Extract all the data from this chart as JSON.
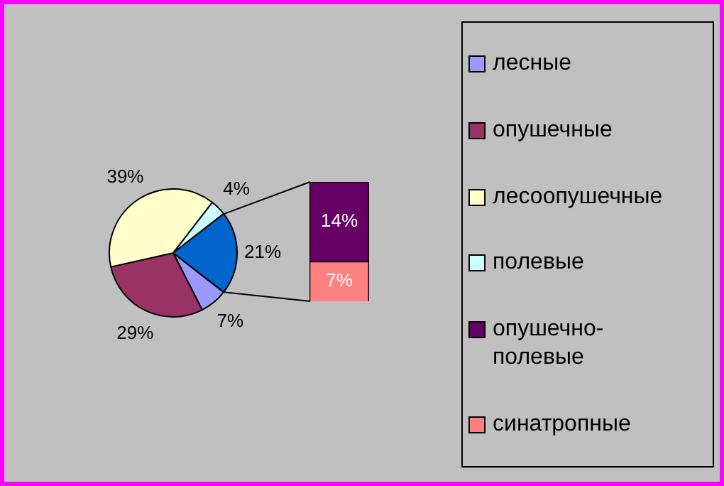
{
  "chart_data": [
    {
      "type": "pie",
      "categories": [
        "лесные",
        "опушечные",
        "лесоопушечные",
        "полевые",
        null
      ],
      "values": [
        7,
        29,
        39,
        4,
        21
      ],
      "colors": [
        "#9999ff",
        "#993366",
        "#ffffcc",
        "#ccffff",
        "#0066cc"
      ],
      "value_labels": [
        "7%",
        "29%",
        "39%",
        "4%",
        "21%"
      ],
      "legend": "right"
    },
    {
      "type": "bar",
      "stacked": true,
      "categories": [
        null
      ],
      "series": [
        {
          "name": "синатропные",
          "color": "#ff8080",
          "values": [
            7
          ],
          "value_labels": [
            "7%"
          ]
        },
        {
          "name": "опушечно-полевые",
          "color": "#660066",
          "values": [
            14
          ],
          "value_labels": [
            "14%"
          ]
        }
      ],
      "legend": "right"
    }
  ]
}
